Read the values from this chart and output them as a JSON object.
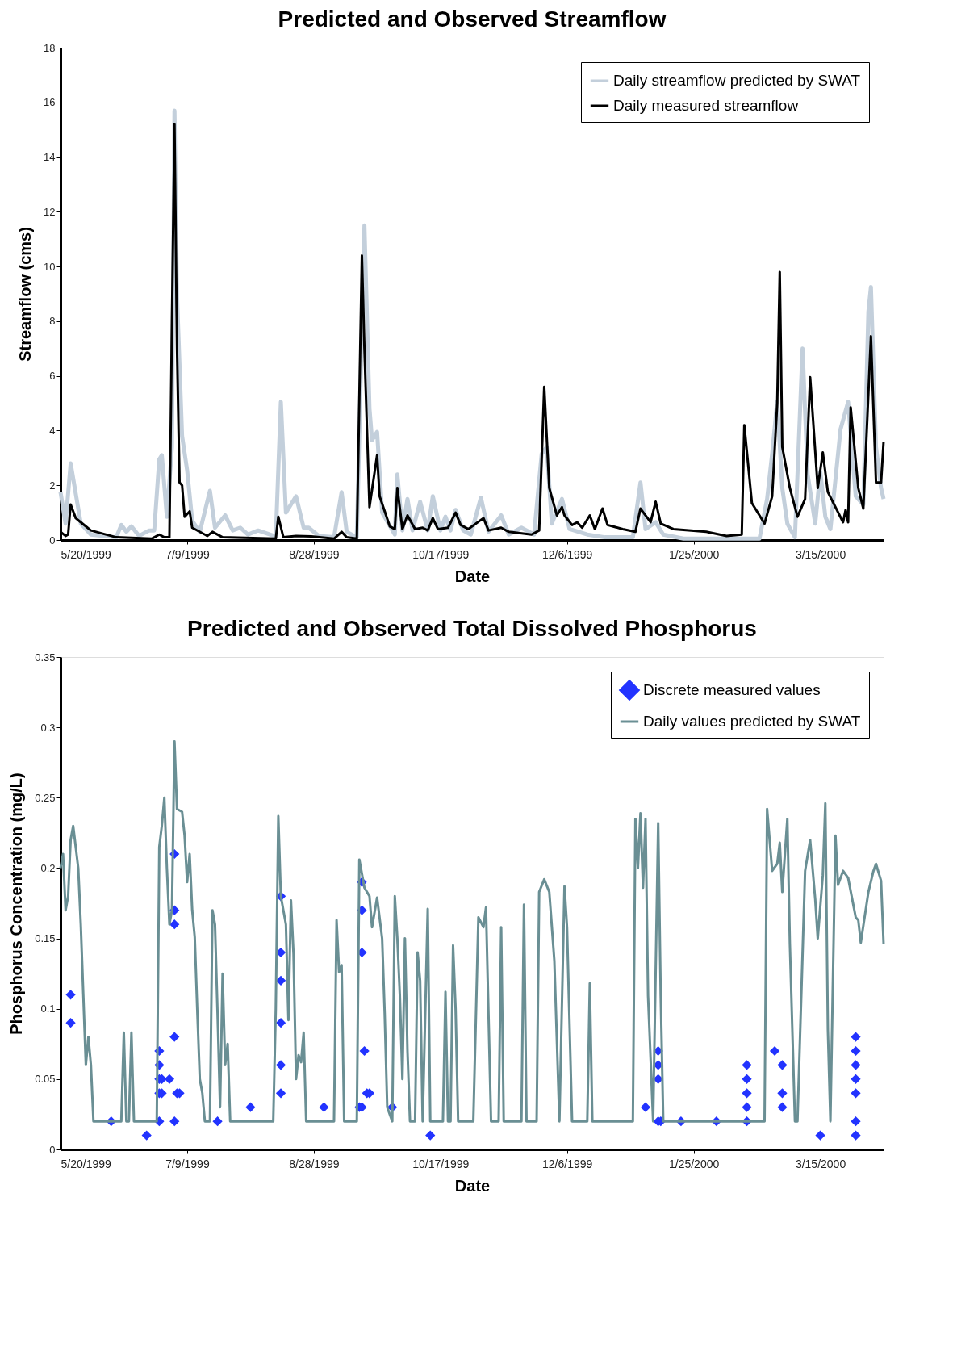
{
  "chart_data": [
    {
      "type": "line",
      "title": "Predicted and Observed Streamflow",
      "xlabel": "Date",
      "ylabel": "Streamflow (cms)",
      "ylim": [
        0,
        18
      ],
      "yticks": [
        0,
        2,
        4,
        6,
        8,
        10,
        12,
        14,
        16,
        18
      ],
      "xlim": [
        "1999-05-20",
        "2000-04-09"
      ],
      "xticks": [
        {
          "value": "1999-05-20",
          "label": "5/20/1999"
        },
        {
          "value": "1999-07-09",
          "label": "7/9/1999"
        },
        {
          "value": "1999-08-28",
          "label": "8/28/1999"
        },
        {
          "value": "1999-10-17",
          "label": "10/17/1999"
        },
        {
          "value": "1999-12-06",
          "label": "12/6/1999"
        },
        {
          "value": "2000-01-25",
          "label": "1/25/2000"
        },
        {
          "value": "2000-03-15",
          "label": "3/15/2000"
        }
      ],
      "legend": "top right",
      "grid": false,
      "line_style": "solid",
      "series": [
        {
          "name": "Daily streamflow predicted by SWAT",
          "color": "#c3cfdb",
          "x": [
            "1999-05-20",
            "1999-05-22",
            "1999-05-24",
            "1999-05-25",
            "1999-05-28",
            "1999-06-01",
            "1999-06-11",
            "1999-06-13",
            "1999-06-15",
            "1999-06-17",
            "1999-06-20",
            "1999-06-24",
            "1999-06-26",
            "1999-06-28",
            "1999-06-29",
            "1999-07-01",
            "1999-07-03",
            "1999-07-04",
            "1999-07-05",
            "1999-07-07",
            "1999-07-09",
            "1999-07-11",
            "1999-07-14",
            "1999-07-18",
            "1999-07-20",
            "1999-07-24",
            "1999-07-27",
            "1999-07-30",
            "1999-08-02",
            "1999-08-06",
            "1999-08-13",
            "1999-08-15",
            "1999-08-17",
            "1999-08-21",
            "1999-08-24",
            "1999-08-26",
            "1999-08-30",
            "1999-09-05",
            "1999-09-08",
            "1999-09-10",
            "1999-09-14",
            "1999-09-17",
            "1999-09-19",
            "1999-09-20",
            "1999-09-22",
            "1999-09-24",
            "1999-09-29",
            "1999-09-30",
            "1999-10-02",
            "1999-10-04",
            "1999-10-06",
            "1999-10-09",
            "1999-10-12",
            "1999-10-14",
            "1999-10-17",
            "1999-10-19",
            "1999-10-21",
            "1999-10-23",
            "1999-10-26",
            "1999-10-29",
            "1999-11-02",
            "1999-11-05",
            "1999-11-10",
            "1999-11-13",
            "1999-11-18",
            "1999-11-23",
            "1999-11-26",
            "1999-11-28",
            "1999-11-30",
            "1999-12-04",
            "1999-12-07",
            "1999-12-14",
            "1999-12-21",
            "2000-01-01",
            "2000-01-04",
            "2000-01-06",
            "2000-01-10",
            "2000-01-13",
            "2000-01-21",
            "2000-02-20",
            "2000-02-23",
            "2000-02-25",
            "2000-02-27",
            "2000-02-29",
            "2000-03-02",
            "2000-03-05",
            "2000-03-08",
            "2000-03-10",
            "2000-03-13",
            "2000-03-15",
            "2000-03-17",
            "2000-03-19",
            "2000-03-23",
            "2000-03-26",
            "2000-03-29",
            "2000-04-01",
            "2000-04-03",
            "2000-04-04",
            "2000-04-06",
            "2000-04-08",
            "2000-04-09"
          ],
          "values": [
            1.75,
            0.6,
            2.8,
            2.25,
            0.6,
            0.2,
            0.1,
            0.55,
            0.3,
            0.5,
            0.15,
            0.35,
            0.35,
            2.95,
            3.1,
            0.85,
            3.4,
            15.7,
            8.9,
            3.8,
            2.55,
            0.7,
            0.3,
            1.8,
            0.45,
            0.9,
            0.35,
            0.45,
            0.2,
            0.35,
            0.13,
            5.05,
            1.0,
            1.6,
            0.45,
            0.45,
            0.15,
            0.1,
            1.75,
            0.3,
            0.1,
            11.5,
            4.8,
            3.65,
            3.95,
            1.0,
            0.2,
            2.4,
            0.35,
            1.5,
            0.35,
            1.4,
            0.35,
            1.6,
            0.35,
            0.85,
            0.35,
            1.1,
            0.35,
            0.2,
            1.55,
            0.3,
            0.9,
            0.2,
            0.45,
            0.2,
            3.15,
            3.4,
            0.6,
            1.5,
            0.4,
            0.2,
            0.1,
            0.1,
            2.1,
            0.4,
            0.65,
            0.2,
            0.05,
            0.05,
            1.5,
            3.15,
            5.05,
            1.9,
            0.6,
            0.1,
            7.0,
            2.4,
            0.6,
            2.5,
            0.85,
            0.4,
            4.05,
            5.05,
            1.6,
            1.3,
            8.35,
            9.25,
            3.4,
            1.9,
            1.5
          ]
        },
        {
          "name": "Daily measured streamflow",
          "color": "#000000",
          "x": [
            "1999-05-20",
            "1999-05-22",
            "1999-05-23",
            "1999-05-24",
            "1999-05-26",
            "1999-05-28",
            "1999-06-01",
            "1999-06-11",
            "1999-06-25",
            "1999-06-28",
            "1999-06-30",
            "1999-07-02",
            "1999-07-03",
            "1999-07-04",
            "1999-07-05",
            "1999-07-06",
            "1999-07-07",
            "1999-07-08",
            "1999-07-10",
            "1999-07-11",
            "1999-07-17",
            "1999-07-19",
            "1999-07-23",
            "1999-08-13",
            "1999-08-14",
            "1999-08-16",
            "1999-08-21",
            "1999-08-27",
            "1999-09-05",
            "1999-09-08",
            "1999-09-10",
            "1999-09-14",
            "1999-09-16",
            "1999-09-17",
            "1999-09-19",
            "1999-09-22",
            "1999-09-23",
            "1999-09-27",
            "1999-09-29",
            "1999-09-30",
            "1999-10-02",
            "1999-10-04",
            "1999-10-07",
            "1999-10-10",
            "1999-10-12",
            "1999-10-14",
            "1999-10-16",
            "1999-10-20",
            "1999-10-23",
            "1999-10-25",
            "1999-10-28",
            "1999-11-03",
            "1999-11-05",
            "1999-11-10",
            "1999-11-13",
            "1999-11-22",
            "1999-11-25",
            "1999-11-27",
            "1999-11-29",
            "1999-12-02",
            "1999-12-04",
            "1999-12-05",
            "1999-12-08",
            "1999-12-10",
            "1999-12-12",
            "1999-12-15",
            "1999-12-17",
            "1999-12-20",
            "1999-12-22",
            "1999-12-28",
            "2000-01-02",
            "2000-01-04",
            "2000-01-08",
            "2000-01-10",
            "2000-01-12",
            "2000-01-17",
            "2000-01-30",
            "2000-02-07",
            "2000-02-13",
            "2000-02-14",
            "2000-02-17",
            "2000-02-22",
            "2000-02-25",
            "2000-02-27",
            "2000-02-28",
            "2000-02-29",
            "2000-03-03",
            "2000-03-06",
            "2000-03-09",
            "2000-03-11",
            "2000-03-14",
            "2000-03-16",
            "2000-03-18",
            "2000-03-24",
            "2000-03-25",
            "2000-03-26",
            "2000-03-27",
            "2000-03-30",
            "2000-04-01",
            "2000-04-04",
            "2000-04-06",
            "2000-04-08",
            "2000-04-09"
          ],
          "values": [
            0.3,
            0.15,
            0.2,
            1.3,
            0.8,
            0.65,
            0.35,
            0.1,
            0.05,
            0.2,
            0.1,
            0.1,
            8,
            15.2,
            7,
            2.1,
            2.0,
            0.85,
            1.05,
            0.45,
            0.15,
            0.3,
            0.1,
            0.05,
            0.85,
            0.1,
            0.15,
            0.13,
            0.05,
            0.3,
            0.1,
            0.05,
            10.4,
            7,
            1.2,
            3.1,
            1.6,
            0.5,
            0.4,
            1.9,
            0.4,
            0.9,
            0.4,
            0.45,
            0.35,
            0.8,
            0.4,
            0.45,
            1.0,
            0.55,
            0.4,
            0.8,
            0.35,
            0.45,
            0.3,
            0.2,
            0.35,
            5.6,
            1.9,
            0.9,
            1.2,
            0.9,
            0.55,
            0.65,
            0.45,
            0.9,
            0.4,
            1.15,
            0.55,
            0.4,
            0.3,
            1.15,
            0.65,
            1.4,
            0.6,
            0.4,
            0.3,
            0.15,
            0.2,
            4.2,
            1.35,
            0.6,
            1.6,
            5,
            9.8,
            3.4,
            1.9,
            0.85,
            1.5,
            5.95,
            1.9,
            3.2,
            1.75,
            0.65,
            1.1,
            0.65,
            4.85,
            1.9,
            1.15,
            7.45,
            2.1,
            2.1,
            3.6
          ]
        }
      ]
    },
    {
      "type": "line",
      "title": "Predicted and Observed Total Dissolved Phosphorus",
      "xlabel": "Date",
      "ylabel": "Phosphorus Concentration (mg/L)",
      "ylim": [
        0,
        0.35
      ],
      "yticks": [
        0,
        0.05,
        0.1,
        0.15,
        0.2,
        0.25,
        0.3,
        0.35
      ],
      "xlim": [
        "1999-05-20",
        "2000-04-09"
      ],
      "xticks": [
        {
          "value": "1999-05-20",
          "label": "5/20/1999"
        },
        {
          "value": "1999-07-09",
          "label": "7/9/1999"
        },
        {
          "value": "1999-08-28",
          "label": "8/28/1999"
        },
        {
          "value": "1999-10-17",
          "label": "10/17/1999"
        },
        {
          "value": "1999-12-06",
          "label": "12/6/1999"
        },
        {
          "value": "2000-01-25",
          "label": "1/25/2000"
        },
        {
          "value": "2000-03-15",
          "label": "3/15/2000"
        }
      ],
      "legend": "top right",
      "grid": false,
      "series": [
        {
          "name": "Discrete measured values",
          "type": "scatter",
          "marker": "diamond",
          "color": "#2233ff",
          "x": [
            "1999-05-24",
            "1999-05-24",
            "1999-06-09",
            "1999-06-23",
            "1999-06-28",
            "1999-06-28",
            "1999-06-28",
            "1999-06-28",
            "1999-06-28",
            "1999-06-29",
            "1999-06-29",
            "1999-07-02",
            "1999-07-04",
            "1999-07-04",
            "1999-07-04",
            "1999-07-04",
            "1999-07-04",
            "1999-07-05",
            "1999-07-06",
            "1999-07-21",
            "1999-08-03",
            "1999-08-15",
            "1999-08-15",
            "1999-08-15",
            "1999-08-15",
            "1999-08-15",
            "1999-08-15",
            "1999-09-01",
            "1999-09-15",
            "1999-09-16",
            "1999-09-16",
            "1999-09-16",
            "1999-09-16",
            "1999-09-17",
            "1999-09-18",
            "1999-09-19",
            "1999-09-28",
            "1999-10-13",
            "2000-01-06",
            "2000-01-11",
            "2000-01-11",
            "2000-01-11",
            "2000-01-11",
            "2000-01-12",
            "2000-01-20",
            "2000-02-03",
            "2000-02-15",
            "2000-02-15",
            "2000-02-15",
            "2000-02-15",
            "2000-02-15",
            "2000-02-26",
            "2000-02-29",
            "2000-02-29",
            "2000-02-29",
            "2000-03-15",
            "2000-03-29",
            "2000-03-29",
            "2000-03-29",
            "2000-03-29",
            "2000-03-29",
            "2000-03-29",
            "2000-03-29"
          ],
          "values": [
            0.11,
            0.09,
            0.02,
            0.01,
            0.07,
            0.06,
            0.05,
            0.04,
            0.02,
            0.05,
            0.04,
            0.05,
            0.21,
            0.17,
            0.16,
            0.08,
            0.02,
            0.04,
            0.04,
            0.02,
            0.03,
            0.18,
            0.14,
            0.12,
            0.09,
            0.06,
            0.04,
            0.03,
            0.03,
            0.03,
            0.19,
            0.17,
            0.14,
            0.07,
            0.04,
            0.04,
            0.03,
            0.01,
            0.03,
            0.07,
            0.06,
            0.05,
            0.02,
            0.02,
            0.02,
            0.02,
            0.06,
            0.05,
            0.04,
            0.03,
            0.02,
            0.07,
            0.06,
            0.04,
            0.03,
            0.01,
            0.08,
            0.07,
            0.06,
            0.05,
            0.04,
            0.02,
            0.01
          ]
        },
        {
          "name": "Daily values predicted by SWAT",
          "type": "line",
          "line_style": "solid",
          "color": "#6a8f94",
          "x": [
            "1999-05-20",
            "1999-05-21",
            "1999-05-22",
            "1999-05-23",
            "1999-05-24",
            "1999-05-25",
            "1999-05-27",
            "1999-05-28",
            "1999-05-29",
            "1999-05-30",
            "1999-05-31",
            "1999-06-01",
            "1999-06-02",
            "1999-06-13",
            "1999-06-14",
            "1999-06-15",
            "1999-06-16",
            "1999-06-17",
            "1999-06-18",
            "1999-06-27",
            "1999-06-28",
            "1999-06-29",
            "1999-06-30",
            "1999-07-01",
            "1999-07-02",
            "1999-07-03",
            "1999-07-04",
            "1999-07-05",
            "1999-07-07",
            "1999-07-08",
            "1999-07-09",
            "1999-07-10",
            "1999-07-11",
            "1999-07-12",
            "1999-07-13",
            "1999-07-14",
            "1999-07-15",
            "1999-07-16",
            "1999-07-18",
            "1999-07-19",
            "1999-07-20",
            "1999-07-21",
            "1999-07-22",
            "1999-07-23",
            "1999-07-24",
            "1999-07-25",
            "1999-07-26",
            "1999-08-12",
            "1999-08-13",
            "1999-08-14",
            "1999-08-15",
            "1999-08-16",
            "1999-08-17",
            "1999-08-18",
            "1999-08-19",
            "1999-08-20",
            "1999-08-21",
            "1999-08-22",
            "1999-08-23",
            "1999-08-24",
            "1999-08-25",
            "1999-09-05",
            "1999-09-06",
            "1999-09-07",
            "1999-09-08",
            "1999-09-09",
            "1999-09-14",
            "1999-09-15",
            "1999-09-17",
            "1999-09-19",
            "1999-09-20",
            "1999-09-22",
            "1999-09-24",
            "1999-09-25",
            "1999-09-26",
            "1999-09-28",
            "1999-09-29",
            "1999-09-30",
            "1999-10-01",
            "1999-10-02",
            "1999-10-03",
            "1999-10-04",
            "1999-10-05",
            "1999-10-07",
            "1999-10-08",
            "1999-10-09",
            "1999-10-10",
            "1999-10-12",
            "1999-10-13",
            "1999-10-18",
            "1999-10-19",
            "1999-10-20",
            "1999-10-21",
            "1999-10-22",
            "1999-10-23",
            "1999-10-24",
            "1999-10-30",
            "1999-11-01",
            "1999-11-03",
            "1999-11-04",
            "1999-11-06",
            "1999-11-09",
            "1999-11-10",
            "1999-11-11",
            "1999-11-18",
            "1999-11-19",
            "1999-11-20",
            "1999-11-24",
            "1999-11-25",
            "1999-11-27",
            "1999-11-29",
            "1999-12-01",
            "1999-12-03",
            "1999-12-05",
            "1999-12-06",
            "1999-12-08",
            "1999-12-14",
            "1999-12-15",
            "1999-12-16",
            "2000-01-01",
            "2000-01-02",
            "2000-01-03",
            "2000-01-04",
            "2000-01-05",
            "2000-01-06",
            "2000-01-07",
            "2000-01-09",
            "2000-01-11",
            "2000-01-12",
            "2000-01-13",
            "2000-02-22",
            "2000-02-23",
            "2000-02-25",
            "2000-02-27",
            "2000-02-28",
            "2000-02-29",
            "2000-03-02",
            "2000-03-03",
            "2000-03-05",
            "2000-03-06",
            "2000-03-09",
            "2000-03-11",
            "2000-03-13",
            "2000-03-14",
            "2000-03-16",
            "2000-03-17",
            "2000-03-18",
            "2000-03-19",
            "2000-03-21",
            "2000-03-22",
            "2000-03-24",
            "2000-03-26",
            "2000-03-29",
            "2000-03-30",
            "2000-03-31",
            "2000-04-03",
            "2000-04-05",
            "2000-04-06",
            "2000-04-08",
            "2000-04-09"
          ],
          "values": [
            0.2,
            0.21,
            0.17,
            0.18,
            0.22,
            0.23,
            0.2,
            0.16,
            0.11,
            0.06,
            0.08,
            0.06,
            0.02,
            0.02,
            0.083,
            0.02,
            0.02,
            0.083,
            0.02,
            0.02,
            0.215,
            0.23,
            0.25,
            0.2,
            0.16,
            0.17,
            0.29,
            0.242,
            0.24,
            0.223,
            0.19,
            0.21,
            0.17,
            0.151,
            0.099,
            0.05,
            0.04,
            0.02,
            0.02,
            0.17,
            0.16,
            0.097,
            0.03,
            0.125,
            0.06,
            0.075,
            0.02,
            0.02,
            0.1,
            0.237,
            0.18,
            0.17,
            0.16,
            0.092,
            0.177,
            0.139,
            0.05,
            0.067,
            0.062,
            0.083,
            0.02,
            0.02,
            0.163,
            0.126,
            0.131,
            0.02,
            0.02,
            0.206,
            0.186,
            0.18,
            0.158,
            0.179,
            0.15,
            0.097,
            0.03,
            0.02,
            0.18,
            0.15,
            0.109,
            0.05,
            0.15,
            0.07,
            0.02,
            0.02,
            0.14,
            0.12,
            0.02,
            0.171,
            0.02,
            0.02,
            0.112,
            0.02,
            0.02,
            0.145,
            0.1,
            0.02,
            0.02,
            0.165,
            0.158,
            0.172,
            0.02,
            0.02,
            0.158,
            0.02,
            0.02,
            0.174,
            0.02,
            0.02,
            0.183,
            0.192,
            0.183,
            0.134,
            0.02,
            0.187,
            0.158,
            0.02,
            0.02,
            0.118,
            0.02,
            0.02,
            0.235,
            0.2,
            0.239,
            0.186,
            0.235,
            0.109,
            0.02,
            0.232,
            0.109,
            0.02,
            0.02,
            0.242,
            0.198,
            0.203,
            0.218,
            0.183,
            0.235,
            0.146,
            0.02,
            0.02,
            0.198,
            0.22,
            0.178,
            0.15,
            0.195,
            0.246,
            0.085,
            0.02,
            0.223,
            0.188,
            0.198,
            0.193,
            0.165,
            0.163,
            0.147,
            0.183,
            0.198,
            0.203,
            0.191,
            0.146
          ]
        }
      ]
    }
  ]
}
